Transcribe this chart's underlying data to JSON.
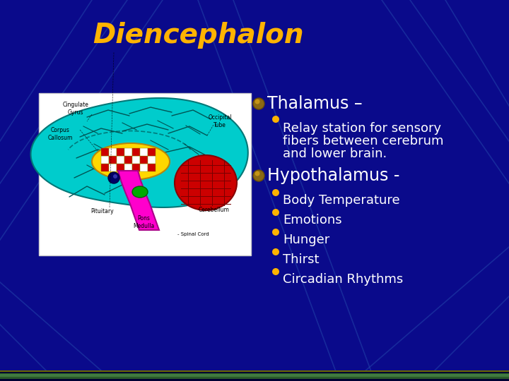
{
  "title": "Diencephalon",
  "title_color": "#FFB300",
  "title_fontsize": 28,
  "bg_color": "#0A0A8B",
  "line_color": "#2244AA",
  "bullet1_text": "Thalamus –",
  "bullet1_fontsize": 17,
  "sub_bullet1_lines": [
    "Relay station for sensory",
    "fibers between cerebrum",
    "and lower brain."
  ],
  "sub_bullet1_fontsize": 13,
  "bullet2_text": "Hypothalamus -",
  "bullet2_fontsize": 17,
  "sub_bullets2": [
    "Body Temperature",
    "Emotions",
    "Hunger",
    "Thirst",
    "Circadian Rhythms"
  ],
  "sub_bullet2_fontsize": 13,
  "text_color": "#FFFFFF",
  "bullet_big_color": "#8B6914",
  "bullet_small_color": "#FFB300",
  "bottom_stripe_color": "#3A5A3A",
  "bottom_gold_color": "#8B8B00"
}
